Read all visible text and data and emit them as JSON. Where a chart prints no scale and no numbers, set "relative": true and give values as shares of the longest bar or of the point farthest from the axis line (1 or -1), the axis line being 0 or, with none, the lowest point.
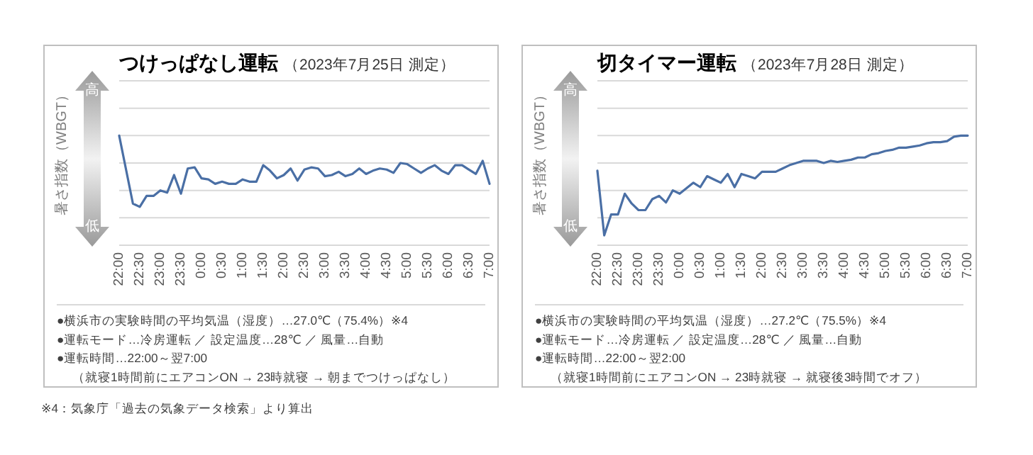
{
  "chart_data": [
    {
      "type": "line",
      "title": "つけっぱなし運転",
      "subtitle": "（2023年7月25日 測定）",
      "ylabel": "暑さ指数（WBGT）",
      "relative": true,
      "grid": true,
      "color": "#4a6fa5",
      "annotations": [
        "高",
        "低",
        "●横浜市の実験時間の平均気温（湿度）…27.0℃（75.4%）※4",
        "●運転モード…冷房運転 ／ 設定温度…28℃ ／ 風量…自動",
        "●運転時間…22:00～翌7:00",
        "（就寝1時間前にエアコンON → 23時就寝 → 朝までつけっぱなし）",
        "※4：気象庁「過去の気象データ検索」より算出"
      ],
      "categories": [
        "22:00",
        null,
        null,
        "22:30",
        null,
        null,
        "23:00",
        null,
        null,
        "23:30",
        null,
        null,
        "0:00",
        null,
        null,
        "0:30",
        null,
        null,
        "1:00",
        null,
        null,
        "1:30",
        null,
        null,
        "2:00",
        null,
        null,
        "2:30",
        null,
        null,
        "3:00",
        null,
        null,
        "3:30",
        null,
        null,
        "4:00",
        null,
        null,
        "4:30",
        null,
        null,
        "5:00",
        null,
        null,
        "5:30",
        null,
        null,
        "6:00",
        null,
        null,
        "6:30",
        null,
        null,
        "7:00"
      ],
      "values": [
        1.0,
        0.69,
        0.38,
        0.35,
        0.45,
        0.45,
        0.5,
        0.48,
        0.64,
        0.47,
        0.7,
        0.71,
        0.61,
        0.6,
        0.56,
        0.58,
        0.56,
        0.56,
        0.6,
        0.58,
        0.58,
        0.73,
        0.68,
        0.61,
        0.64,
        0.7,
        0.59,
        0.69,
        0.71,
        0.7,
        0.63,
        0.64,
        0.67,
        0.63,
        0.65,
        0.7,
        0.65,
        0.68,
        0.7,
        0.69,
        0.66,
        0.75,
        0.74,
        0.7,
        0.66,
        0.7,
        0.73,
        0.68,
        0.65,
        0.73,
        0.73,
        0.69,
        0.65,
        0.77,
        0.56
      ]
    },
    {
      "type": "line",
      "title": "切タイマー運転",
      "subtitle": "（2023年7月28日 測定）",
      "ylabel": "暑さ指数（WBGT）",
      "relative": true,
      "grid": true,
      "color": "#4a6fa5",
      "annotations": [
        "高",
        "低",
        "●横浜市の実験時間の平均気温（湿度）…27.2℃（75.5%）※4",
        "●運転モード…冷房運転 ／ 設定温度…28℃ ／ 風量…自動",
        "●運転時間…22:00～翌2:00",
        "（就寝1時間前にエアコンON → 23時就寝 → 就寝後3時間でオフ）"
      ],
      "categories": [
        "22:00",
        null,
        null,
        "22:30",
        null,
        null,
        "23:00",
        null,
        null,
        "23:30",
        null,
        null,
        "0:00",
        null,
        null,
        "0:30",
        null,
        null,
        "1:00",
        null,
        null,
        "1:30",
        null,
        null,
        "2:00",
        null,
        null,
        "2:30",
        null,
        null,
        "3:00",
        null,
        null,
        "3:30",
        null,
        null,
        "4:00",
        null,
        null,
        "4:30",
        null,
        null,
        "5:00",
        null,
        null,
        "5:30",
        null,
        null,
        "6:00",
        null,
        null,
        "6:30",
        null,
        null,
        "7:00"
      ],
      "values": [
        0.68,
        0.09,
        0.28,
        0.28,
        0.47,
        0.38,
        0.32,
        0.32,
        0.42,
        0.45,
        0.39,
        0.5,
        0.47,
        0.52,
        0.57,
        0.53,
        0.63,
        0.6,
        0.57,
        0.65,
        0.53,
        0.65,
        0.63,
        0.61,
        0.67,
        0.67,
        0.67,
        0.7,
        0.73,
        0.75,
        0.77,
        0.77,
        0.77,
        0.75,
        0.77,
        0.76,
        0.77,
        0.78,
        0.8,
        0.8,
        0.83,
        0.84,
        0.86,
        0.87,
        0.89,
        0.89,
        0.9,
        0.91,
        0.93,
        0.94,
        0.94,
        0.95,
        0.99,
        1.0,
        1.0
      ]
    }
  ]
}
